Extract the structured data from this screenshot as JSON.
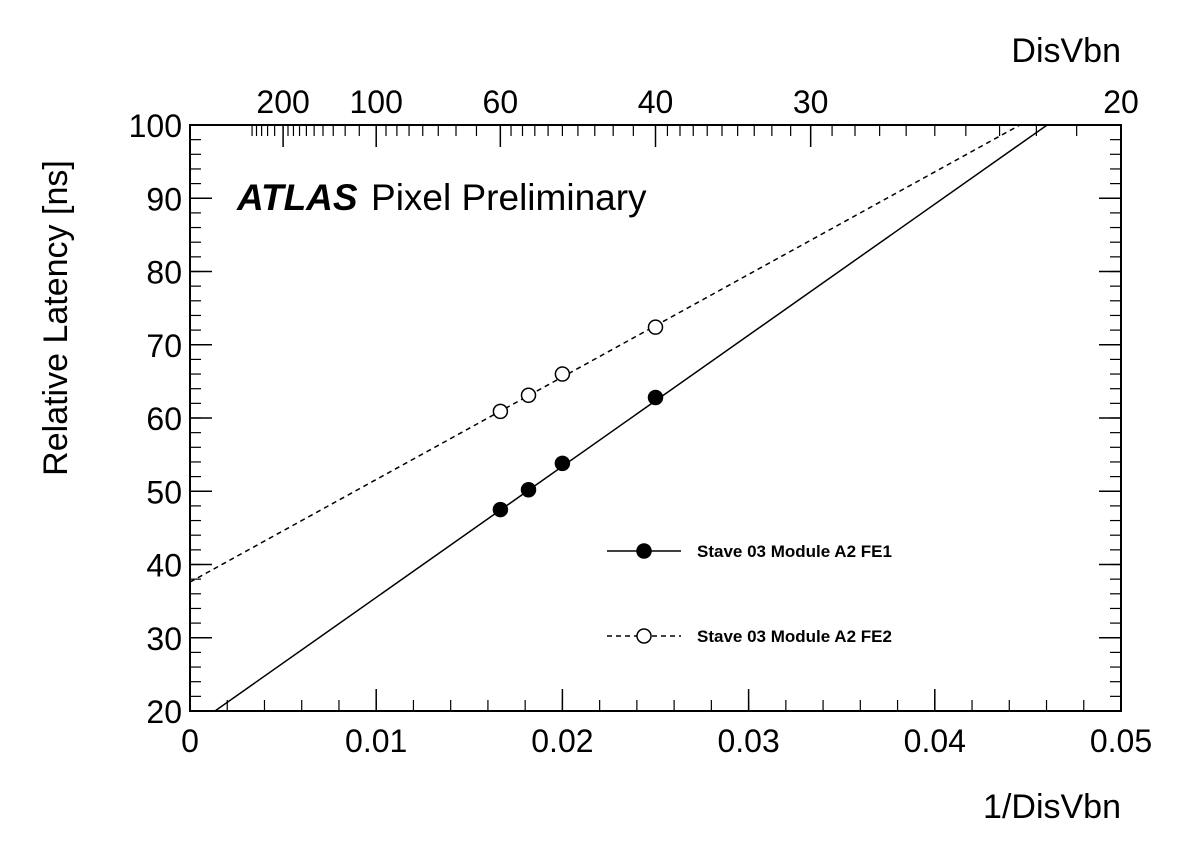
{
  "chart_data": {
    "type": "scatter",
    "title": "",
    "annotation": {
      "bold": "ATLAS",
      "text": "Pixel Preliminary"
    },
    "xlabel": "1/DisVbn",
    "ylabel": "Relative Latency [ns]",
    "top_axis_label": "DisVbn",
    "xlim": [
      0,
      0.05
    ],
    "ylim": [
      20,
      100
    ],
    "x_ticks": [
      0,
      0.01,
      0.02,
      0.03,
      0.04,
      0.05
    ],
    "x_tick_labels": [
      "0",
      "0.01",
      "0.02",
      "0.03",
      "0.04",
      "0.05"
    ],
    "y_ticks": [
      20,
      30,
      40,
      50,
      60,
      70,
      80,
      90,
      100
    ],
    "y_tick_labels": [
      "20",
      "30",
      "40",
      "50",
      "60",
      "70",
      "80",
      "90",
      "100"
    ],
    "top_ticks": [
      200,
      100,
      60,
      40,
      30,
      20
    ],
    "top_tick_labels": [
      "200",
      "100",
      "60",
      "40",
      "30",
      "20"
    ],
    "grid": false,
    "legend_position": "right",
    "series": [
      {
        "name": "Stave 03 Module A2 FE1",
        "marker": "filled-circle",
        "line_style": "solid",
        "x": [
          0.01667,
          0.01818,
          0.02,
          0.025
        ],
        "y": [
          47.5,
          50.2,
          53.8,
          62.8
        ],
        "fit": {
          "slope": 1790,
          "intercept": 17.6
        }
      },
      {
        "name": "Stave 03 Module A2 FE2",
        "marker": "open-circle",
        "line_style": "dashed",
        "x": [
          0.01667,
          0.01818,
          0.02,
          0.025
        ],
        "y": [
          60.9,
          63.1,
          66.0,
          72.4
        ],
        "fit": {
          "slope": 1400,
          "intercept": 37.6
        }
      }
    ]
  }
}
